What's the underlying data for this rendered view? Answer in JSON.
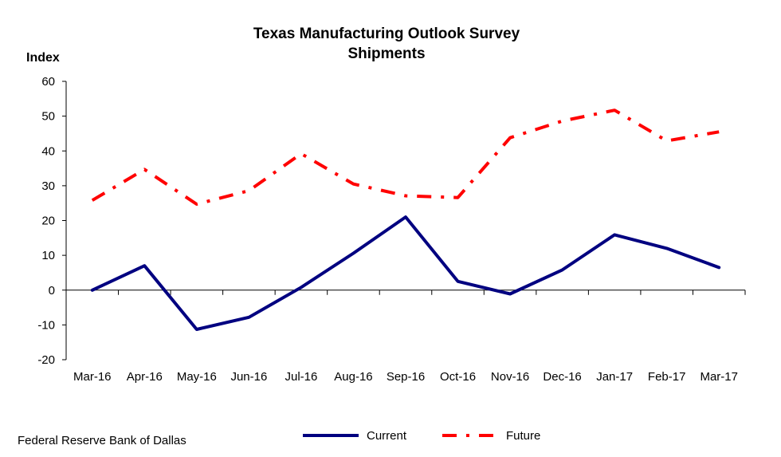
{
  "source_note": "Federal Reserve Bank of Dallas",
  "colors": {
    "current": "#000080",
    "future": "#ff0000",
    "axis": "#000000"
  },
  "chart_data": {
    "type": "line",
    "title": "Texas Manufacturing Outlook Survey",
    "subtitle": "Shipments",
    "ylabel": "Index",
    "xlabel": "",
    "ylim": [
      -20,
      60
    ],
    "yticks": [
      -20,
      -10,
      0,
      10,
      20,
      30,
      40,
      50,
      60
    ],
    "categories": [
      "Mar-16",
      "Apr-16",
      "May-16",
      "Jun-16",
      "Jul-16",
      "Aug-16",
      "Sep-16",
      "Oct-16",
      "Nov-16",
      "Dec-16",
      "Jan-17",
      "Feb-17",
      "Mar-17"
    ],
    "grid": false,
    "legend_position": "bottom",
    "series": [
      {
        "name": "Current",
        "style": "solid",
        "values": [
          0.0,
          7.0,
          -11.3,
          -7.8,
          0.8,
          10.6,
          21.0,
          2.5,
          -1.1,
          5.8,
          15.9,
          12.0,
          6.5
        ]
      },
      {
        "name": "Future",
        "style": "dash-dot",
        "values": [
          25.8,
          34.7,
          24.7,
          28.6,
          39.2,
          30.5,
          27.1,
          26.6,
          43.8,
          48.6,
          51.7,
          42.9,
          45.5
        ]
      }
    ]
  }
}
